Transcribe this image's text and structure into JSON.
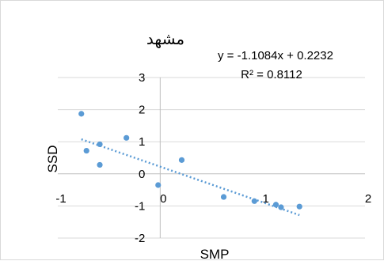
{
  "chart_data": {
    "type": "scatter",
    "title": "مشهد",
    "xlabel": "SMP",
    "ylabel": "SSD",
    "xlim": [
      -1,
      2
    ],
    "ylim": [
      -2,
      3
    ],
    "x_ticks": [
      "-1",
      "0",
      "1",
      "2"
    ],
    "y_ticks": [
      "-2",
      "-1",
      "0",
      "1",
      "2",
      "3"
    ],
    "grid": "horizontal",
    "series": [
      {
        "marker_color": "#5b9bd5",
        "points": [
          {
            "x": -0.77,
            "y": 1.87
          },
          {
            "x": -0.72,
            "y": 0.72
          },
          {
            "x": -0.59,
            "y": 0.92
          },
          {
            "x": -0.59,
            "y": 0.28
          },
          {
            "x": -0.33,
            "y": 1.12
          },
          {
            "x": -0.02,
            "y": -0.35
          },
          {
            "x": 0.21,
            "y": 0.43
          },
          {
            "x": 0.62,
            "y": -0.72
          },
          {
            "x": 0.92,
            "y": -0.85
          },
          {
            "x": 1.13,
            "y": -0.96
          },
          {
            "x": 1.18,
            "y": -1.04
          },
          {
            "x": 1.36,
            "y": -1.02
          }
        ]
      }
    ],
    "trendline": {
      "type": "linear",
      "slope": -1.1084,
      "intercept": 0.2232,
      "x_range": [
        -0.77,
        1.36
      ],
      "color": "#5b9bd5",
      "equation_label": "y = -1.1084x + 0.2232",
      "r2_label": "R² = 0.8112"
    }
  }
}
